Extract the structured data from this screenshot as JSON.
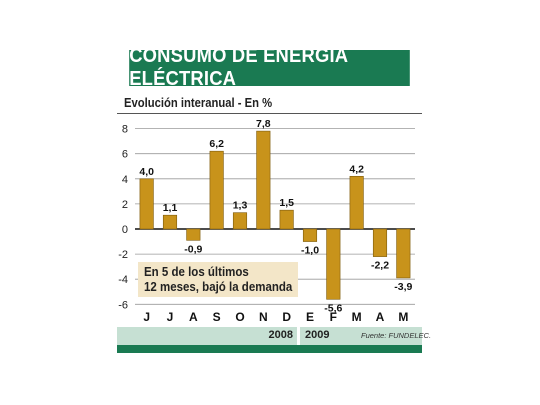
{
  "title": "CONSUMO DE ENERGÍA ELÉCTRICA",
  "subtitle": "Evolución interanual - En %",
  "note_lines": [
    "En 5 de los últimos",
    "12 meses, bajó la demanda"
  ],
  "year_labels": [
    "2008",
    "2009"
  ],
  "source": "Fuente: FUNDELEC.",
  "colors": {
    "brand": "#1a7a52",
    "bar": "#c8931b",
    "band": "#c6e0d3",
    "note_bg": "#f3e6c8"
  },
  "chart_data": {
    "type": "bar",
    "title": "CONSUMO DE ENERGÍA ELÉCTRICA",
    "subtitle": "Evolución interanual - En %",
    "categories": [
      "J",
      "J",
      "A",
      "S",
      "O",
      "N",
      "D",
      "E",
      "F",
      "M",
      "A",
      "M"
    ],
    "values": [
      4.0,
      1.1,
      -0.9,
      6.2,
      1.3,
      7.8,
      1.5,
      -1.0,
      -5.6,
      4.2,
      -2.2,
      -3.9
    ],
    "value_labels": [
      "4,0",
      "1,1",
      "-0,9",
      "6,2",
      "1,3",
      "7,8",
      "1,5",
      "-1,0",
      "-5,6",
      "4,2",
      "-2,2",
      "-3,9"
    ],
    "yticks": [
      8,
      6,
      4,
      2,
      0,
      -2,
      -4,
      -6
    ],
    "ylim": [
      -6.5,
      8.5
    ],
    "grid": true,
    "xlabel": "",
    "ylabel": ""
  }
}
